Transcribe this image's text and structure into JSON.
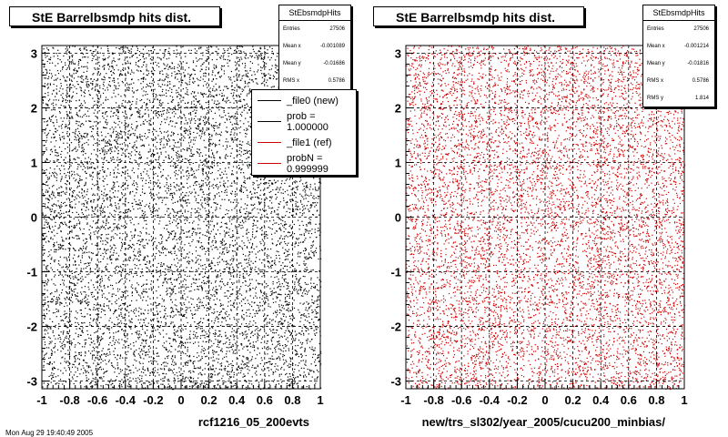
{
  "chart_data": [
    {
      "type": "scatter",
      "title": "StE Barrelbsmdp hits dist.",
      "xlabel": "rcf1216_05_200evts",
      "ylabel": "",
      "xlim": [
        -1,
        1
      ],
      "ylim": [
        -3.14,
        3.14
      ],
      "x_ticks": [
        "-1",
        "-0.8",
        "-0.6",
        "-0.4",
        "-0.2",
        "0",
        "0.2",
        "0.4",
        "0.6",
        "0.8",
        "1"
      ],
      "y_ticks": [
        "3",
        "2",
        "1",
        "0",
        "-1",
        "-2",
        "-3"
      ],
      "grid": true,
      "marker_color": "#000000",
      "distribution": "uniform",
      "stats": {
        "name": "StEbsmdpHits",
        "rows": [
          {
            "label": "Entries",
            "value": "27506"
          },
          {
            "label": "Mean x",
            "value": "-0.001089"
          },
          {
            "label": "Mean y",
            "value": "-0.01686"
          },
          {
            "label": "RMS x",
            "value": "0.5786"
          }
        ]
      },
      "legend": [
        {
          "label": "_file0 (new)",
          "color": "#000000"
        },
        {
          "label": "prob = 1.000000",
          "color": "#000000"
        },
        {
          "label": "_file1 (ref)",
          "color": "#cc0000"
        },
        {
          "label": "probN = 0.999999",
          "color": "#cc0000"
        }
      ]
    },
    {
      "type": "scatter",
      "title": "StE Barrelbsmdp hits dist.",
      "xlabel": "new/trs_sl302/year_2005/cucu200_minbias/",
      "ylabel": "",
      "xlim": [
        -1,
        1
      ],
      "ylim": [
        -3.14,
        3.14
      ],
      "x_ticks": [
        "-1",
        "-0.8",
        "-0.6",
        "-0.4",
        "-0.2",
        "0",
        "0.2",
        "0.4",
        "0.6",
        "0.8",
        "1"
      ],
      "y_ticks": [
        "3",
        "2",
        "1",
        "0",
        "-1",
        "-2",
        "-3"
      ],
      "grid": true,
      "marker_color": "#cc0000",
      "distribution": "uniform",
      "stats": {
        "name": "StEbsmdpHits",
        "rows": [
          {
            "label": "Entries",
            "value": "27506"
          },
          {
            "label": "Mean x",
            "value": "-0.001214"
          },
          {
            "label": "Mean y",
            "value": "-0.01816"
          },
          {
            "label": "RMS x",
            "value": "0.5786"
          },
          {
            "label": "RMS y",
            "value": "1.814"
          }
        ]
      }
    }
  ],
  "footer_text": "Mon Aug 29 19:40:49 2005"
}
